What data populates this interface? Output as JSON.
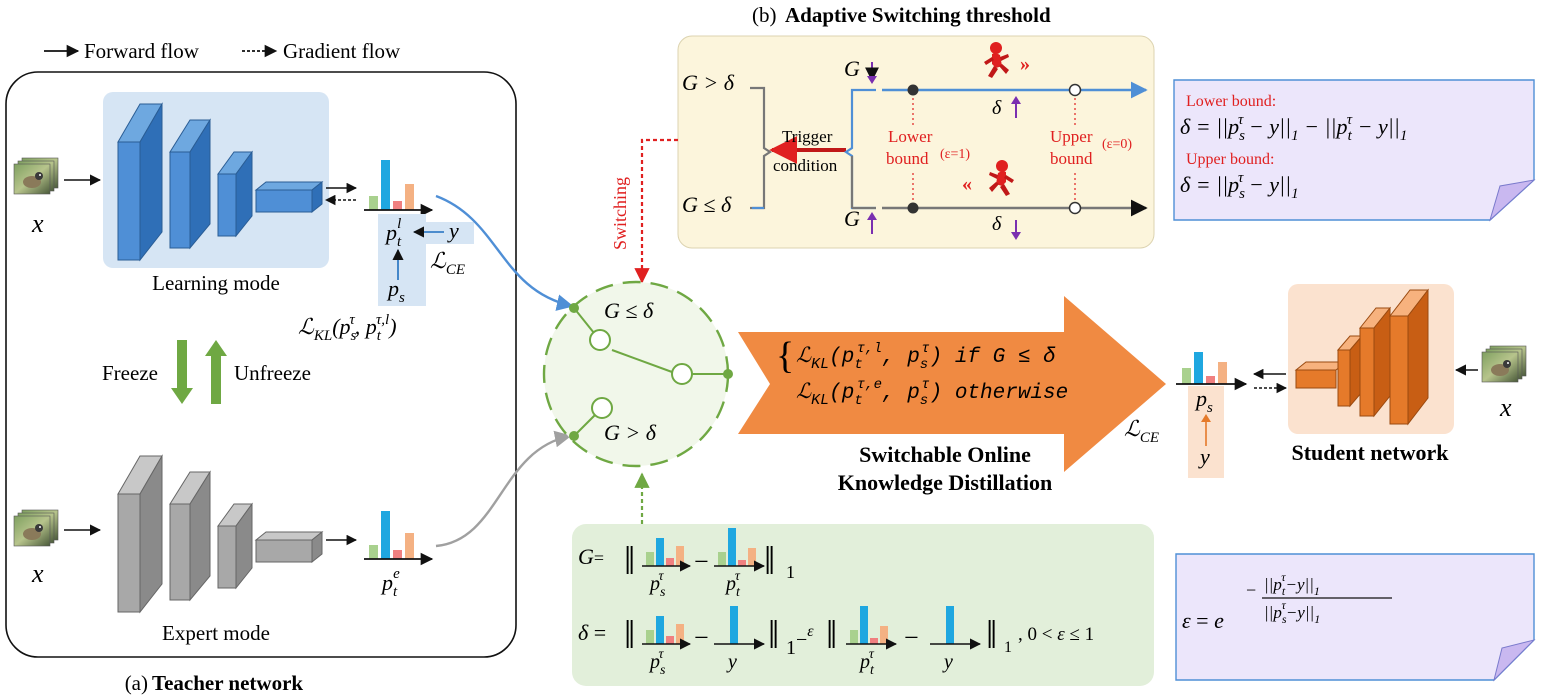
{
  "legend": {
    "forward": "Forward flow",
    "gradient": "Gradient flow"
  },
  "teacher": {
    "caption_prefix": "(a)",
    "caption_bold": "Teacher network",
    "learning_mode": "Learning mode",
    "expert_mode": "Expert mode",
    "freeze": "Freeze",
    "unfreeze": "Unfreeze",
    "input_label": "x",
    "expert_input_label": "x",
    "p_t_l": "p_t^l",
    "p_s": "p_s",
    "y": "y",
    "l_ce": "ℒ_CE",
    "l_kl": "ℒ_KL(p_s^τ, p_t^(τ,l))",
    "p_t_e": "p_t^e"
  },
  "threshold": {
    "title_prefix": "(b)",
    "title_bold": "Adaptive Switching threshold",
    "g_gt_delta": "G > δ",
    "g_le_delta": "G ≤ δ",
    "trigger": "Trigger",
    "condition": "condition",
    "g_down": "G",
    "g_up": "G",
    "delta_up": "δ",
    "delta_down": "δ",
    "lower_bound": "Lower",
    "lower_bound2": "bound",
    "lower_eps": "(ε=1)",
    "upper_bound": "Upper",
    "upper_bound2": "bound",
    "upper_eps": "(ε=0)",
    "switching": "Switching"
  },
  "bounds_note": {
    "lower_title": "Lower bound:",
    "lower_formula": "δ = ||p_s^τ − y||₁ − ||p_t^τ − y||₁",
    "upper_title": "Upper bound:",
    "upper_formula": "δ = ||p_s^τ − y||₁"
  },
  "switch": {
    "top": "G ≤ δ",
    "bottom": "G > δ"
  },
  "kd": {
    "line1": "ℒ_KL(p_t^(τ,l), p_s^τ)  if G ≤ δ",
    "line2": "ℒ_KL(p_t^(τ,e), p_s^τ)  otherwise",
    "caption1": "Switchable Online",
    "caption2": "Knowledge Distillation"
  },
  "student": {
    "label": "Student network",
    "input_label": "x",
    "p_s": "p_s",
    "y": "y",
    "l_ce": "ℒ_CE"
  },
  "formula_box": {
    "g_label": "G=",
    "delta_label": "δ =",
    "norm_sub": "1",
    "minus_eps": "1−ε",
    "range": "0 < ε ≤ 1",
    "ps_tau": "p_s^τ",
    "pt_tau": "p_t^τ",
    "y": "y"
  },
  "eps_note": {
    "formula": "ε = e^(−||p_t^τ−y||₁ / ||p_s^τ−y||₁)",
    "eps": "ε = e",
    "num": "||p_t^τ−y||₁",
    "den": "||p_s^τ−y||₁"
  },
  "colors": {
    "blue": "#4f8fd6",
    "gray": "#a0a0a0",
    "orange": "#f08a42",
    "green": "#6fa843",
    "red": "#e02020",
    "purple": "#7a2fb0",
    "bar_green": "#a9d18e",
    "bar_blue": "#1fa7e0",
    "bar_red": "#f08080",
    "bar_orange": "#f4b183"
  }
}
